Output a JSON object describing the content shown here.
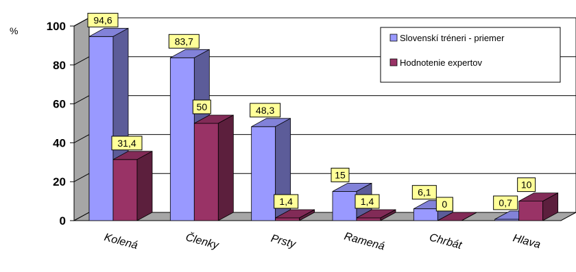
{
  "chart_data": {
    "type": "bar",
    "ylabel": "%",
    "ylim": [
      0,
      100
    ],
    "yticks": [
      "0",
      "20",
      "40",
      "60",
      "80",
      "100"
    ],
    "grid": true,
    "legend_position": "top-right",
    "categories": [
      "Kolená",
      "Členky",
      "Prsty",
      "Ramená",
      "Chrbát",
      "Hlava"
    ],
    "series": [
      {
        "name": "Slovenskí tréneri - priemer",
        "color": "#9999ff",
        "values": [
          94.6,
          83.7,
          48.3,
          15,
          6.1,
          0.7
        ],
        "labels": [
          "94,6",
          "83,7",
          "48,3",
          "15",
          "6,1",
          "0,7"
        ]
      },
      {
        "name": "Hodnotenie expertov",
        "color": "#993366",
        "values": [
          31.4,
          50,
          1.4,
          1.4,
          0,
          10
        ],
        "labels": [
          "31,4",
          "50",
          "1,4",
          "1,4",
          "0",
          "10"
        ]
      }
    ]
  }
}
